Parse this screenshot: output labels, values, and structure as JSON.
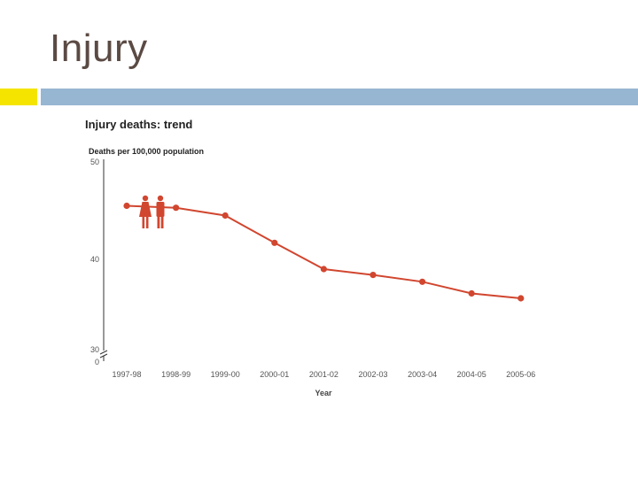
{
  "slide": {
    "title": "Injury",
    "accent_colors": {
      "yellow": "#f5e400",
      "blue": "#97b6d2"
    }
  },
  "chart_data": {
    "type": "line",
    "title": "Injury deaths: trend",
    "ylabel": "Deaths per 100,000 population",
    "xlabel": "Year",
    "categories": [
      "1997-98",
      "1998-99",
      "1999-00",
      "2000-01",
      "2001-02",
      "2002-03",
      "2003-04",
      "2004-05",
      "2005-06"
    ],
    "ytick_labels": [
      "0",
      "30",
      "40",
      "50"
    ],
    "y_axis_break": true,
    "legend_icon": "female-male-icon",
    "series": [
      {
        "color": "#d1462f",
        "x_start": "1997-98",
        "values": [
          45.5,
          45.3,
          44.5,
          41.7,
          39.0,
          38.4,
          37.7,
          36.5,
          36.0
        ]
      }
    ],
    "grid": false
  }
}
